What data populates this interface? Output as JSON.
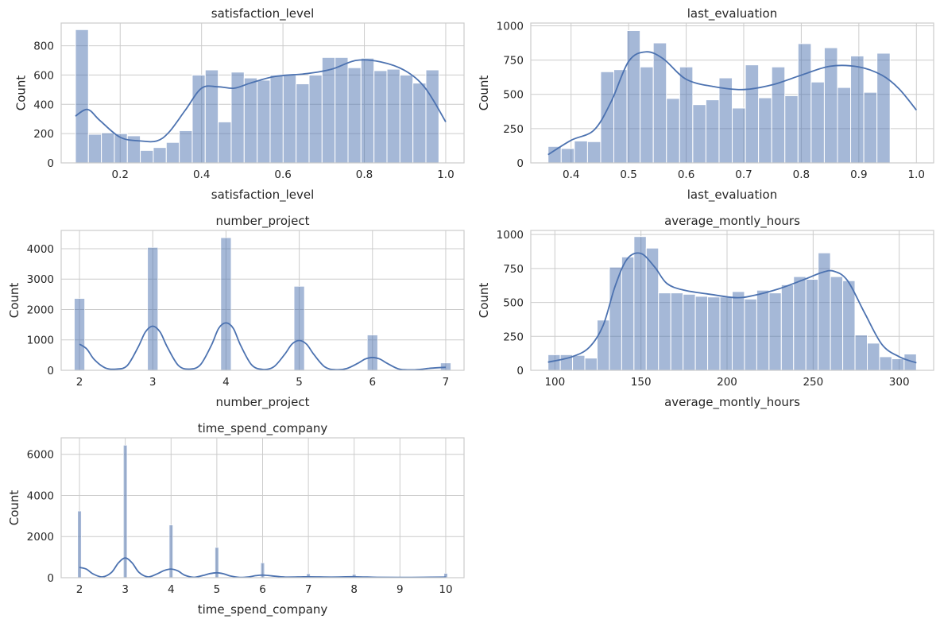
{
  "colors": {
    "bar_fill": "#4c72b0",
    "kde_line": "#4c72b0",
    "grid": "#cccccc",
    "text": "#262626",
    "frame": "#cccccc"
  },
  "chart_data": [
    {
      "type": "histogram",
      "title": "satisfaction_level",
      "xlabel": "satisfaction_level",
      "ylabel": "Count",
      "xlim": [
        0.055,
        1.045
      ],
      "ylim": [
        0,
        955
      ],
      "xticks": [
        0.2,
        0.4,
        0.6,
        0.8,
        1.0
      ],
      "xtick_labels": [
        "0.2",
        "0.4",
        "0.6",
        "0.8",
        "1.0"
      ],
      "yticks": [
        0,
        200,
        400,
        600,
        800
      ],
      "ytick_labels": [
        "0",
        "200",
        "400",
        "600",
        "800"
      ],
      "bin_start": 0.09,
      "bin_width": 0.0319,
      "values": [
        910,
        195,
        205,
        200,
        185,
        85,
        105,
        140,
        220,
        600,
        635,
        280,
        620,
        580,
        565,
        600,
        600,
        540,
        600,
        720,
        720,
        650,
        715,
        630,
        640,
        600,
        545,
        635
      ],
      "kde_x": [
        0.09,
        0.12,
        0.15,
        0.2,
        0.25,
        0.29,
        0.32,
        0.36,
        0.4,
        0.44,
        0.48,
        0.52,
        0.58,
        0.66,
        0.72,
        0.78,
        0.84,
        0.9,
        0.95,
        1.0
      ],
      "kde_y": [
        320,
        365,
        290,
        175,
        150,
        150,
        210,
        360,
        510,
        520,
        510,
        545,
        590,
        610,
        640,
        700,
        690,
        630,
        510,
        280
      ]
    },
    {
      "type": "histogram",
      "title": "last_evaluation",
      "xlabel": "last_evaluation",
      "ylabel": "Count",
      "xlim": [
        0.33,
        1.03
      ],
      "ylim": [
        0,
        1020
      ],
      "xticks": [
        0.4,
        0.5,
        0.6,
        0.7,
        0.8,
        0.9,
        1.0
      ],
      "xtick_labels": [
        "0.4",
        "0.5",
        "0.6",
        "0.7",
        "0.8",
        "0.9",
        "1.0"
      ],
      "yticks": [
        0,
        250,
        500,
        750,
        1000
      ],
      "ytick_labels": [
        "0",
        "250",
        "500",
        "750",
        "1000"
      ],
      "bin_start": 0.36,
      "bin_width": 0.02286,
      "values": [
        120,
        105,
        160,
        155,
        665,
        680,
        965,
        700,
        875,
        470,
        700,
        425,
        460,
        620,
        400,
        715,
        475,
        700,
        490,
        870,
        590,
        840,
        550,
        780,
        515,
        800
      ],
      "kde_x": [
        0.36,
        0.4,
        0.44,
        0.47,
        0.5,
        0.53,
        0.56,
        0.6,
        0.65,
        0.7,
        0.75,
        0.8,
        0.85,
        0.9,
        0.94,
        0.97,
        1.0
      ],
      "kde_y": [
        60,
        165,
        240,
        450,
        740,
        810,
        760,
        610,
        555,
        535,
        570,
        640,
        705,
        700,
        640,
        540,
        385
      ]
    },
    {
      "type": "histogram",
      "title": "number_project",
      "xlabel": "number_project",
      "ylabel": "Count",
      "xlim": [
        1.75,
        7.25
      ],
      "ylim": [
        0,
        4600
      ],
      "xticks": [
        2,
        3,
        4,
        5,
        6,
        7
      ],
      "xtick_labels": [
        "2",
        "3",
        "4",
        "5",
        "6",
        "7"
      ],
      "yticks": [
        0,
        1000,
        2000,
        3000,
        4000
      ],
      "ytick_labels": [
        "0",
        "1000",
        "2000",
        "3000",
        "4000"
      ],
      "bars": [
        {
          "x": 2,
          "value": 2360
        },
        {
          "x": 3,
          "value": 4040
        },
        {
          "x": 4,
          "value": 4360
        },
        {
          "x": 5,
          "value": 2760
        },
        {
          "x": 6,
          "value": 1160
        },
        {
          "x": 7,
          "value": 240
        }
      ],
      "bar_width": 0.14,
      "kde_x": [
        2.0,
        2.1,
        2.2,
        2.35,
        2.5,
        2.65,
        2.8,
        2.9,
        3.0,
        3.1,
        3.2,
        3.35,
        3.5,
        3.65,
        3.8,
        3.9,
        4.0,
        4.1,
        4.2,
        4.35,
        4.5,
        4.65,
        4.8,
        4.9,
        5.0,
        5.1,
        5.2,
        5.35,
        5.5,
        5.65,
        5.8,
        5.9,
        6.0,
        6.1,
        6.2,
        6.35,
        6.5,
        6.65,
        6.8,
        7.0
      ],
      "kde_y": [
        860,
        700,
        360,
        80,
        40,
        150,
        760,
        1260,
        1450,
        1260,
        760,
        160,
        40,
        180,
        820,
        1380,
        1560,
        1380,
        820,
        180,
        30,
        110,
        520,
        860,
        980,
        860,
        520,
        110,
        20,
        60,
        230,
        370,
        420,
        370,
        230,
        50,
        15,
        30,
        70,
        100
      ]
    },
    {
      "type": "histogram",
      "title": "average_montly_hours",
      "xlabel": "average_montly_hours",
      "ylabel": "Count",
      "xlim": [
        86,
        320
      ],
      "ylim": [
        0,
        1030
      ],
      "xticks": [
        100,
        150,
        200,
        250,
        300
      ],
      "xtick_labels": [
        "100",
        "150",
        "200",
        "250",
        "300"
      ],
      "yticks": [
        0,
        250,
        500,
        750,
        1000
      ],
      "ytick_labels": [
        "0",
        "250",
        "500",
        "750",
        "1000"
      ],
      "bin_start": 96,
      "bin_width": 7.133,
      "values": [
        115,
        115,
        110,
        90,
        370,
        760,
        835,
        985,
        900,
        570,
        570,
        560,
        545,
        540,
        540,
        580,
        525,
        590,
        570,
        630,
        690,
        670,
        865,
        690,
        660,
        260,
        200,
        100,
        85,
        120
      ],
      "kde_x": [
        96,
        110,
        120,
        128,
        135,
        142,
        150,
        158,
        165,
        175,
        190,
        205,
        215,
        230,
        245,
        255,
        262,
        270,
        280,
        290,
        300,
        310
      ],
      "kde_y": [
        60,
        100,
        170,
        330,
        620,
        820,
        860,
        760,
        640,
        590,
        560,
        535,
        550,
        600,
        670,
        720,
        730,
        660,
        420,
        190,
        100,
        55
      ]
    },
    {
      "type": "histogram",
      "title": "time_spend_company",
      "xlabel": "time_spend_company",
      "ylabel": "Count",
      "xlim": [
        1.6,
        10.4
      ],
      "ylim": [
        0,
        6800
      ],
      "xticks": [
        2,
        3,
        4,
        5,
        6,
        7,
        8,
        9,
        10
      ],
      "xtick_labels": [
        "2",
        "3",
        "4",
        "5",
        "6",
        "7",
        "8",
        "9",
        "10"
      ],
      "yticks": [
        0,
        2000,
        4000,
        6000
      ],
      "ytick_labels": [
        "0",
        "2000",
        "4000",
        "6000"
      ],
      "bars": [
        {
          "x": 2,
          "value": 3240
        },
        {
          "x": 3,
          "value": 6440
        },
        {
          "x": 4,
          "value": 2560
        },
        {
          "x": 5,
          "value": 1470
        },
        {
          "x": 6,
          "value": 720
        },
        {
          "x": 7,
          "value": 190
        },
        {
          "x": 8,
          "value": 160
        },
        {
          "x": 10,
          "value": 210
        }
      ],
      "bar_width": 0.08,
      "kde_x": [
        2.0,
        2.15,
        2.3,
        2.5,
        2.7,
        2.85,
        3.0,
        3.15,
        3.3,
        3.5,
        3.7,
        3.85,
        4.0,
        4.15,
        4.3,
        4.5,
        4.7,
        4.85,
        5.0,
        5.15,
        5.3,
        5.5,
        5.7,
        5.85,
        6.0,
        6.2,
        6.5,
        7.0,
        7.5,
        8.0,
        8.5,
        9.0,
        9.5,
        10.0
      ],
      "kde_y": [
        500,
        420,
        180,
        40,
        260,
        720,
        960,
        720,
        260,
        40,
        190,
        350,
        420,
        330,
        120,
        20,
        110,
        200,
        240,
        190,
        80,
        15,
        40,
        100,
        125,
        90,
        30,
        45,
        30,
        45,
        20,
        12,
        20,
        30
      ]
    }
  ]
}
